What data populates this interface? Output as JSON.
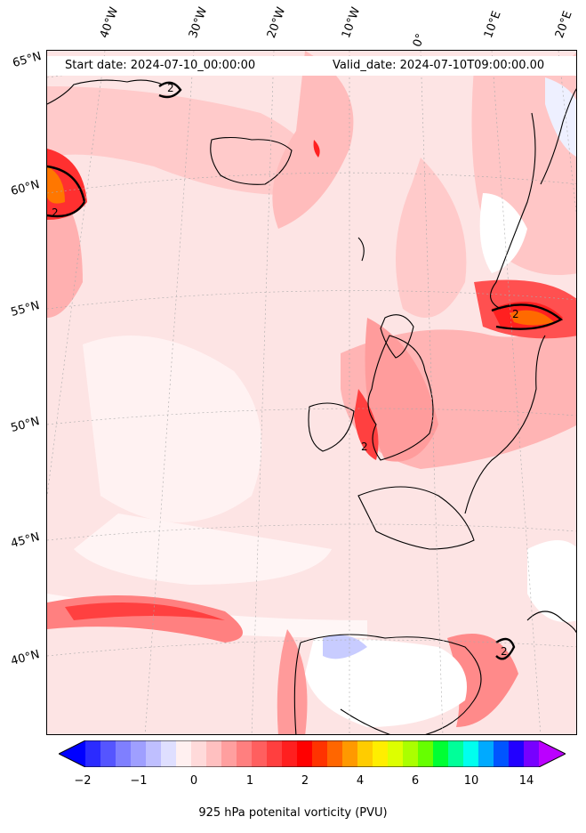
{
  "header": {
    "start_date": "Start date: 2024-07-10_00:00:00",
    "valid_date": "Valid_date: 2024-07-10T09:00:00.00"
  },
  "lon_labels": [
    "40°W",
    "30°W",
    "20°W",
    "10°W",
    "0°",
    "10°E",
    "20°E"
  ],
  "lat_labels": [
    "65°N",
    "60°N",
    "55°N",
    "50°N",
    "45°N",
    "40°N"
  ],
  "contour_labels": [
    "2",
    "2",
    "2",
    "2",
    "2"
  ],
  "colorbar": {
    "title": "925 hPa potenital vorticity (PVU)",
    "ticks": [
      "−2",
      "−1",
      "0",
      "1",
      "2",
      "4",
      "6",
      "10",
      "14"
    ],
    "colors": [
      "#0000ff",
      "#2b2bff",
      "#5555ff",
      "#7f7fff",
      "#9f9fff",
      "#bfbfff",
      "#dfdfff",
      "#fff0f0",
      "#ffdada",
      "#ffc0c0",
      "#ff9f9f",
      "#ff7f7f",
      "#ff5f5f",
      "#ff3f3f",
      "#ff1f1f",
      "#ff0000",
      "#ff3300",
      "#ff6600",
      "#ff9900",
      "#ffcc00",
      "#ffee00",
      "#ddff00",
      "#aaff00",
      "#66ff00",
      "#00ff33",
      "#00ff99",
      "#00ffee",
      "#00aaff",
      "#0055ff",
      "#2200ff",
      "#7700ff",
      "#bb00ff"
    ]
  }
}
